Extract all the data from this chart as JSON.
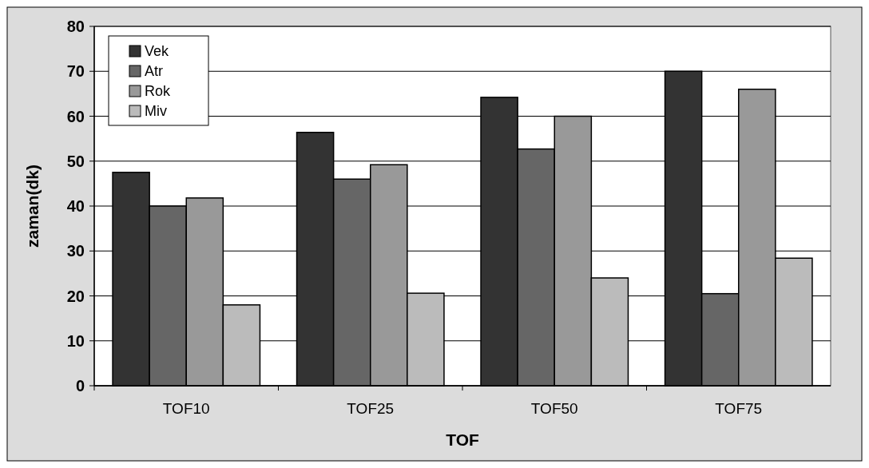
{
  "chart_data": {
    "type": "bar",
    "xlabel": "TOF",
    "ylabel": "zaman(dk)",
    "categories": [
      "TOF10",
      "TOF25",
      "TOF50",
      "TOF75"
    ],
    "series": [
      {
        "name": "Vek",
        "color": "#333333",
        "values": [
          47.5,
          56.4,
          64.2,
          70
        ]
      },
      {
        "name": "Atr",
        "color": "#666666",
        "values": [
          40,
          46,
          52.7,
          20.5
        ]
      },
      {
        "name": "Rok",
        "color": "#999999",
        "values": [
          41.8,
          49.2,
          60,
          66
        ]
      },
      {
        "name": "Miv",
        "color": "#bbbbbb",
        "values": [
          18,
          20.6,
          24,
          28.4
        ]
      }
    ],
    "ylim": [
      0,
      80
    ],
    "yticks": [
      0,
      10,
      20,
      30,
      40,
      50,
      60,
      70,
      80
    ],
    "grid": "y",
    "legend": "top left"
  }
}
